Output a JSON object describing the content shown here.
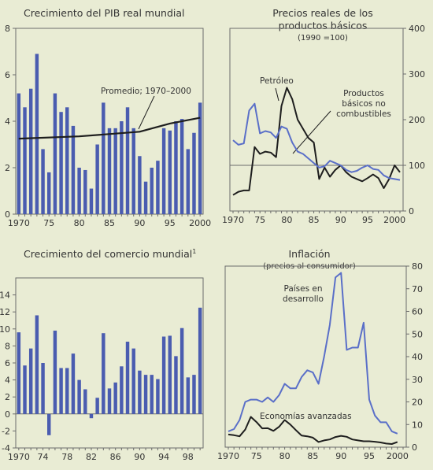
{
  "colors": {
    "background": "#e9ecd4",
    "bars": "#4a5cb0",
    "line_blue": "#5a6fc8",
    "line_black": "#1e1e1e",
    "axis": "#6b6b6b"
  },
  "chart_data": [
    {
      "id": "gdp",
      "type": "bar",
      "title": "Crecimiento del PIB real mundial",
      "years": [
        1970,
        1971,
        1972,
        1973,
        1974,
        1975,
        1976,
        1977,
        1978,
        1979,
        1980,
        1981,
        1982,
        1983,
        1984,
        1985,
        1986,
        1987,
        1988,
        1989,
        1990,
        1991,
        1992,
        1993,
        1994,
        1995,
        1996,
        1997,
        1998,
        1999,
        2000
      ],
      "values": [
        5.2,
        4.6,
        5.4,
        6.9,
        2.8,
        1.8,
        5.2,
        4.4,
        4.6,
        3.8,
        2.0,
        1.9,
        1.1,
        3.0,
        4.8,
        3.7,
        3.7,
        4.0,
        4.6,
        3.7,
        2.5,
        1.4,
        2.0,
        2.3,
        3.7,
        3.6,
        4.0,
        4.1,
        2.8,
        3.5,
        4.8
      ],
      "series": [
        {
          "name": "Promedio; 1970–2000",
          "type": "line",
          "x": [
            1970,
            1980,
            1990,
            1995,
            2000
          ],
          "y": [
            3.25,
            3.35,
            3.55,
            3.9,
            4.15
          ]
        }
      ],
      "annotation": "Promedio; 1970–2000",
      "ylim": [
        0,
        8
      ],
      "yticks": [
        {
          "v": 0,
          "label": "0"
        },
        {
          "v": 2,
          "label": "2"
        },
        {
          "v": 4,
          "label": "4"
        },
        {
          "v": 6,
          "label": "6"
        },
        {
          "v": 8,
          "label": "8"
        }
      ],
      "xticks": [
        {
          "v": 1970,
          "label": "1970"
        },
        {
          "v": 1975,
          "label": "75"
        },
        {
          "v": 1980,
          "label": "80"
        },
        {
          "v": 1985,
          "label": "85"
        },
        {
          "v": 1990,
          "label": "90"
        },
        {
          "v": 1995,
          "label": "95"
        },
        {
          "v": 2000,
          "label": "2000"
        }
      ],
      "yaxis_side": "left"
    },
    {
      "id": "prices",
      "type": "line",
      "title": "Precios reales de los",
      "title2": "productos básicos",
      "subtitle": "(1990 =100)",
      "xlim": [
        1970,
        2001
      ],
      "ylim": [
        0,
        400
      ],
      "yticks": [
        {
          "v": 0,
          "label": "0"
        },
        {
          "v": 100,
          "label": "100"
        },
        {
          "v": 200,
          "label": "200"
        },
        {
          "v": 300,
          "label": "300"
        },
        {
          "v": 400,
          "label": "400"
        }
      ],
      "xticks": [
        {
          "v": 1970,
          "label": "1970"
        },
        {
          "v": 1975,
          "label": "75"
        },
        {
          "v": 1980,
          "label": "80"
        },
        {
          "v": 1985,
          "label": "85"
        },
        {
          "v": 1990,
          "label": "90"
        },
        {
          "v": 1995,
          "label": "95"
        },
        {
          "v": 2000,
          "label": "2000"
        }
      ],
      "yaxis_side": "right",
      "reference_line": 100,
      "series": [
        {
          "name": "Petróleo",
          "color": "#1e1e1e",
          "x": [
            1970,
            1971,
            1972,
            1973,
            1974,
            1975,
            1976,
            1977,
            1978,
            1979,
            1980,
            1981,
            1982,
            1983,
            1984,
            1985,
            1986,
            1987,
            1988,
            1989,
            1990,
            1991,
            1992,
            1993,
            1994,
            1995,
            1996,
            1997,
            1998,
            1999,
            2000,
            2001
          ],
          "y": [
            35,
            42,
            45,
            45,
            140,
            125,
            130,
            128,
            118,
            230,
            270,
            245,
            200,
            180,
            160,
            150,
            70,
            95,
            75,
            90,
            100,
            85,
            75,
            70,
            65,
            72,
            80,
            72,
            50,
            70,
            100,
            85
          ]
        },
        {
          "name": "Productos básicos no combustibles",
          "color": "#5a6fc8",
          "x": [
            1970,
            1971,
            1972,
            1973,
            1974,
            1975,
            1976,
            1977,
            1978,
            1979,
            1980,
            1981,
            1982,
            1983,
            1984,
            1985,
            1986,
            1987,
            1988,
            1989,
            1990,
            1991,
            1992,
            1993,
            1994,
            1995,
            1996,
            1997,
            1998,
            1999,
            2000,
            2001
          ],
          "y": [
            155,
            145,
            148,
            220,
            235,
            170,
            175,
            172,
            160,
            185,
            180,
            150,
            130,
            125,
            115,
            105,
            95,
            98,
            110,
            105,
            100,
            90,
            85,
            88,
            95,
            100,
            92,
            90,
            78,
            72,
            70,
            68
          ]
        }
      ],
      "labels": [
        "Petróleo",
        "Productos",
        "básicos no",
        "combustibles"
      ]
    },
    {
      "id": "trade",
      "type": "bar",
      "title": "Crecimiento del comercio mundial",
      "title_sup": "1",
      "years": [
        1970,
        1971,
        1972,
        1973,
        1974,
        1975,
        1976,
        1977,
        1978,
        1979,
        1980,
        1981,
        1982,
        1983,
        1984,
        1985,
        1986,
        1987,
        1988,
        1989,
        1990,
        1991,
        1992,
        1993,
        1994,
        1995,
        1996,
        1997,
        1998,
        1999,
        2000
      ],
      "values": [
        9.6,
        5.7,
        7.7,
        11.6,
        6.0,
        -2.5,
        9.8,
        5.4,
        5.4,
        7.1,
        4.0,
        2.9,
        -0.5,
        1.9,
        9.5,
        3.0,
        3.7,
        5.6,
        8.5,
        7.7,
        5.1,
        4.6,
        4.6,
        4.1,
        9.1,
        9.2,
        6.8,
        10.1,
        4.3,
        4.6,
        12.5
      ],
      "ylim": [
        -4,
        16
      ],
      "yticks": [
        {
          "v": -4,
          "label": "-4"
        },
        {
          "v": -2,
          "label": "-2"
        },
        {
          "v": 0,
          "label": "0"
        },
        {
          "v": 2,
          "label": "2"
        },
        {
          "v": 4,
          "label": "4"
        },
        {
          "v": 6,
          "label": "6"
        },
        {
          "v": 8,
          "label": "8"
        },
        {
          "v": 10,
          "label": "10"
        },
        {
          "v": 12,
          "label": "12"
        },
        {
          "v": 14,
          "label": "14"
        }
      ],
      "xticks": [
        {
          "v": 1970,
          "label": "1970"
        },
        {
          "v": 1974,
          "label": "74"
        },
        {
          "v": 1978,
          "label": "78"
        },
        {
          "v": 1982,
          "label": "82"
        },
        {
          "v": 1986,
          "label": "86"
        },
        {
          "v": 1990,
          "label": "90"
        },
        {
          "v": 1994,
          "label": "94"
        },
        {
          "v": 1998,
          "label": "98"
        }
      ],
      "yaxis_side": "left"
    },
    {
      "id": "inflation",
      "type": "line",
      "title": "Inflación",
      "subtitle": "(precios al consumidor)",
      "xlim": [
        1970,
        2001
      ],
      "ylim": [
        0,
        80
      ],
      "yticks": [
        {
          "v": 0,
          "label": "0"
        },
        {
          "v": 10,
          "label": "10"
        },
        {
          "v": 20,
          "label": "20"
        },
        {
          "v": 30,
          "label": "30"
        },
        {
          "v": 40,
          "label": "40"
        },
        {
          "v": 50,
          "label": "50"
        },
        {
          "v": 60,
          "label": "60"
        },
        {
          "v": 70,
          "label": "70"
        },
        {
          "v": 80,
          "label": "80"
        }
      ],
      "xticks": [
        {
          "v": 1970,
          "label": "1970"
        },
        {
          "v": 1975,
          "label": "75"
        },
        {
          "v": 1980,
          "label": "80"
        },
        {
          "v": 1985,
          "label": "85"
        },
        {
          "v": 1990,
          "label": "90"
        },
        {
          "v": 1995,
          "label": "95"
        },
        {
          "v": 2000,
          "label": "2000"
        }
      ],
      "yaxis_side": "right",
      "series": [
        {
          "name": "Países en desarrollo",
          "color": "#5a6fc8",
          "x": [
            1970,
            1971,
            1972,
            1973,
            1974,
            1975,
            1976,
            1977,
            1978,
            1979,
            1980,
            1981,
            1982,
            1983,
            1984,
            1985,
            1986,
            1987,
            1988,
            1989,
            1990,
            1991,
            1992,
            1993,
            1994,
            1995,
            1996,
            1997,
            1998,
            1999,
            2000
          ],
          "y": [
            7,
            8,
            12,
            20,
            21,
            21,
            20,
            22,
            20,
            23,
            28,
            26,
            26,
            31,
            34,
            33,
            28,
            40,
            54,
            75,
            77,
            43,
            44,
            44,
            55,
            21,
            14,
            11,
            11,
            7,
            6
          ]
        },
        {
          "name": "Economías avanzadas",
          "color": "#1e1e1e",
          "x": [
            1970,
            1971,
            1972,
            1973,
            1974,
            1975,
            1976,
            1977,
            1978,
            1979,
            1980,
            1981,
            1982,
            1983,
            1984,
            1985,
            1986,
            1987,
            1988,
            1989,
            1990,
            1991,
            1992,
            1993,
            1994,
            1995,
            1996,
            1997,
            1998,
            1999,
            2000
          ],
          "y": [
            5.6,
            5.3,
            4.8,
            7.8,
            13.4,
            11.1,
            8.3,
            8.4,
            7.2,
            9.0,
            12.0,
            10.0,
            7.5,
            5.1,
            4.8,
            4.2,
            2.3,
            3.0,
            3.4,
            4.5,
            5.0,
            4.6,
            3.4,
            3.0,
            2.6,
            2.6,
            2.4,
            2.1,
            1.6,
            1.4,
            2.3
          ]
        }
      ],
      "labels": [
        "Países en",
        "desarrollo",
        "Economías avanzadas"
      ]
    }
  ]
}
